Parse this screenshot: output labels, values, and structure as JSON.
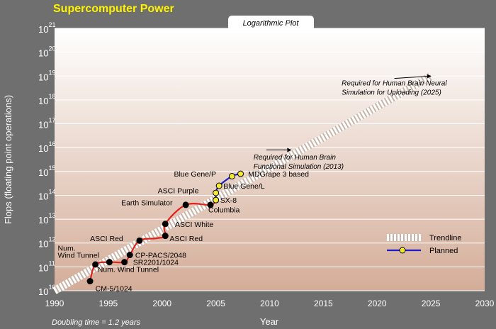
{
  "chart_data": {
    "type": "line",
    "title": "Supercomputer Power",
    "subtitle": "Logarithmic Plot",
    "xlabel": "Year",
    "ylabel": "Flops (floating point operations)",
    "footnote": "Doubling time = 1.2 years",
    "x_ticks": [
      "1990",
      "1995",
      "2000",
      "2005",
      "2010",
      "2015",
      "2020",
      "2025",
      "2030"
    ],
    "xlim": [
      1990,
      2030
    ],
    "y_scale": "log",
    "ylim": [
      10,
      21
    ],
    "y_tick_exponents": [
      "10",
      "11",
      "12",
      "13",
      "14",
      "15",
      "16",
      "17",
      "18",
      "19",
      "20",
      "21"
    ],
    "grid": "horizontal",
    "trendline": {
      "x": [
        1990,
        2025
      ],
      "y": [
        10.0,
        19.0
      ]
    },
    "series": [
      {
        "kind": "actual",
        "color": "#e0231b",
        "points": [
          {
            "x": 1993.3,
            "y": 10.4
          },
          {
            "x": 1993.8,
            "y": 11.1
          },
          {
            "x": 1995.1,
            "y": 11.2
          },
          {
            "x": 1996.5,
            "y": 11.2
          },
          {
            "x": 1997.0,
            "y": 11.5
          },
          {
            "x": 1997.9,
            "y": 12.1
          },
          {
            "x": 1999.5,
            "y": 12.2
          },
          {
            "x": 2000.3,
            "y": 12.3
          },
          {
            "x": 2000.3,
            "y": 12.8
          },
          {
            "x": 2002.2,
            "y": 13.6
          },
          {
            "x": 2004.5,
            "y": 13.6
          },
          {
            "x": 2005.0,
            "y": 13.8
          }
        ],
        "markers": [
          0,
          1,
          2,
          3,
          4,
          5,
          7,
          8,
          9,
          10,
          11
        ]
      },
      {
        "name": "Planned",
        "kind": "planned",
        "color": "#1c1cc8",
        "marker_color": "#f2ea30",
        "points": [
          {
            "x": 2005.0,
            "y": 13.8
          },
          {
            "x": 2005.0,
            "y": 14.1
          },
          {
            "x": 2005.3,
            "y": 14.4
          },
          {
            "x": 2006.5,
            "y": 14.8
          },
          {
            "x": 2007.3,
            "y": 14.9
          }
        ],
        "markers": [
          0,
          1,
          2,
          3,
          4
        ]
      }
    ],
    "annotations": [
      {
        "text": "CM-5/1024",
        "x": 1993.8,
        "y": 10.1
      },
      {
        "text": "Num. Wind Tunnel",
        "x": 1994.0,
        "y": 10.9
      },
      {
        "text": "Num.",
        "x": 1990.3,
        "y": 11.8
      },
      {
        "text": "Wind Tunnel",
        "x": 1990.3,
        "y": 11.5
      },
      {
        "text": "SR2201/1024",
        "x": 1997.3,
        "y": 11.2
      },
      {
        "text": "CP-PACS/2048",
        "x": 1997.5,
        "y": 11.5
      },
      {
        "text": "ASCI Red",
        "x": 1993.3,
        "y": 12.2
      },
      {
        "text": "ASCI Red",
        "x": 2000.7,
        "y": 12.2
      },
      {
        "text": "ASCI White",
        "x": 2001.2,
        "y": 12.8
      },
      {
        "text": "Earth Simulator",
        "x": 1996.2,
        "y": 13.7
      },
      {
        "text": "ASCI Purple",
        "x": 1999.6,
        "y": 14.2
      },
      {
        "text": "Blue Gene/P",
        "x": 2001.1,
        "y": 14.9
      },
      {
        "text": "MDGrape 3 based",
        "x": 2008.0,
        "y": 14.9
      },
      {
        "text": "Blue Gene/L",
        "x": 2005.7,
        "y": 14.4
      },
      {
        "text": "SX-8",
        "x": 2005.4,
        "y": 13.8
      },
      {
        "text": "Columbia",
        "x": 2004.3,
        "y": 13.4
      }
    ],
    "targets": [
      {
        "lines": [
          "Required for Human Brain",
          "Functional Simulation (2013)"
        ],
        "x": 2008.5,
        "y": 15.5,
        "arrow_from": [
          2009.7,
          15.9
        ],
        "arrow_to": [
          2012.0,
          15.9
        ]
      },
      {
        "lines": [
          "Required for Human Brain Neural",
          "Simulation for Uploading (2025)"
        ],
        "x": 2016.7,
        "y": 18.6,
        "arrow_from": [
          2021.6,
          18.9
        ],
        "arrow_to": [
          2025.0,
          19.0
        ]
      }
    ],
    "legend": {
      "placement": "right",
      "entries": [
        {
          "label": "Trendline",
          "style": "trend"
        },
        {
          "label": "Planned",
          "style": "planned"
        }
      ]
    },
    "colors": {
      "title": "#fff200",
      "frame": "#6f6f6f",
      "plot_top": "#ffffff",
      "plot_bottom": "#d4ad98",
      "grid": "#ffffff",
      "trend_light": "#ffffff",
      "trend_dark": "#c9b3a6"
    }
  }
}
